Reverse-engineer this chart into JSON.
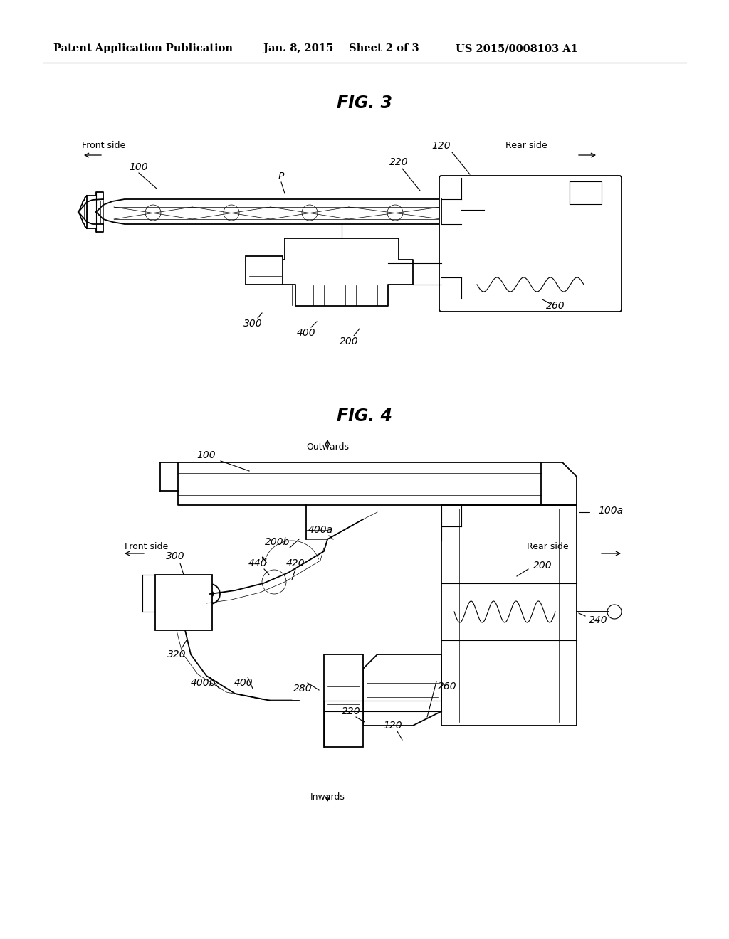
{
  "bg_color": "#ffffff",
  "header_text": "Patent Application Publication",
  "header_date": "Jan. 8, 2015",
  "header_sheet": "Sheet 2 of 3",
  "header_patent": "US 2015/0008103 A1",
  "fig3_title": "FIG. 3",
  "fig4_title": "FIG. 4"
}
